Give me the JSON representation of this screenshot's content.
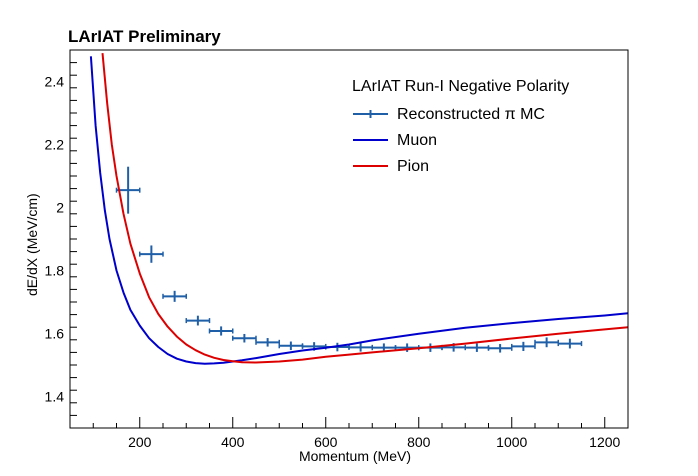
{
  "chart_data": {
    "type": "line",
    "title": "LArIAT Preliminary",
    "xlabel": "Momentum (MeV)",
    "ylabel": "dE/dX (MeV/cm)",
    "xlim": [
      50,
      1250
    ],
    "ylim": [
      1.3,
      2.5
    ],
    "x_ticks": [
      200,
      400,
      600,
      800,
      1000,
      1200
    ],
    "x_tick_labels": [
      "200",
      "400",
      "600",
      "800",
      "1000",
      "1200"
    ],
    "y_ticks": [
      1.4,
      1.6,
      1.8,
      2.0,
      2.2,
      2.4
    ],
    "y_tick_labels": [
      "1.4",
      "1.6",
      "1.8",
      "2",
      "2.2",
      "2.4"
    ],
    "legend": {
      "title": "LArIAT Run-I Negative Polarity",
      "position": "top-right",
      "entries": [
        "Reconstructed π MC",
        "Muon",
        "Pion"
      ]
    },
    "series": [
      {
        "name": "Reconstructed π MC",
        "kind": "errorbar",
        "color": "#1f5fa8",
        "points": [
          {
            "x": 175,
            "y": 2.055,
            "xerr": 25,
            "yerr": 0.065
          },
          {
            "x": 225,
            "y": 1.852,
            "xerr": 25,
            "yerr": 0.018
          },
          {
            "x": 275,
            "y": 1.718,
            "xerr": 25,
            "yerr": 0.008
          },
          {
            "x": 325,
            "y": 1.641,
            "xerr": 25,
            "yerr": 0.006
          },
          {
            "x": 375,
            "y": 1.608,
            "xerr": 25,
            "yerr": 0.005
          },
          {
            "x": 425,
            "y": 1.585,
            "xerr": 25,
            "yerr": 0.004
          },
          {
            "x": 475,
            "y": 1.572,
            "xerr": 25,
            "yerr": 0.004
          },
          {
            "x": 525,
            "y": 1.561,
            "xerr": 25,
            "yerr": 0.004
          },
          {
            "x": 575,
            "y": 1.559,
            "xerr": 25,
            "yerr": 0.004
          },
          {
            "x": 625,
            "y": 1.557,
            "xerr": 25,
            "yerr": 0.004
          },
          {
            "x": 675,
            "y": 1.556,
            "xerr": 25,
            "yerr": 0.004
          },
          {
            "x": 725,
            "y": 1.555,
            "xerr": 25,
            "yerr": 0.004
          },
          {
            "x": 775,
            "y": 1.555,
            "xerr": 25,
            "yerr": 0.004
          },
          {
            "x": 825,
            "y": 1.555,
            "xerr": 25,
            "yerr": 0.004
          },
          {
            "x": 875,
            "y": 1.556,
            "xerr": 25,
            "yerr": 0.004
          },
          {
            "x": 925,
            "y": 1.555,
            "xerr": 25,
            "yerr": 0.004
          },
          {
            "x": 975,
            "y": 1.553,
            "xerr": 25,
            "yerr": 0.004
          },
          {
            "x": 1025,
            "y": 1.559,
            "xerr": 25,
            "yerr": 0.005
          },
          {
            "x": 1075,
            "y": 1.572,
            "xerr": 25,
            "yerr": 0.006
          },
          {
            "x": 1125,
            "y": 1.568,
            "xerr": 25,
            "yerr": 0.006
          }
        ]
      },
      {
        "name": "Muon",
        "kind": "line",
        "color": "#0000cc",
        "x": [
          95,
          105,
          115,
          125,
          135,
          150,
          165,
          180,
          200,
          220,
          240,
          260,
          280,
          300,
          320,
          340,
          360,
          380,
          400,
          420,
          450,
          500,
          550,
          600,
          650,
          700,
          800,
          900,
          1000,
          1100,
          1200,
          1250
        ],
        "y": [
          2.48,
          2.26,
          2.11,
          1.99,
          1.9,
          1.8,
          1.73,
          1.675,
          1.625,
          1.585,
          1.557,
          1.535,
          1.52,
          1.511,
          1.506,
          1.504,
          1.505,
          1.507,
          1.511,
          1.515,
          1.522,
          1.535,
          1.546,
          1.555,
          1.565,
          1.578,
          1.599,
          1.618,
          1.633,
          1.646,
          1.657,
          1.664
        ]
      },
      {
        "name": "Pion",
        "kind": "line",
        "color": "#dd0000",
        "x": [
          120,
          130,
          140,
          150,
          165,
          180,
          200,
          220,
          240,
          260,
          280,
          300,
          320,
          340,
          360,
          380,
          400,
          420,
          450,
          500,
          550,
          600,
          650,
          700,
          800,
          900,
          1000,
          1100,
          1200,
          1250
        ],
        "y": [
          2.49,
          2.33,
          2.2,
          2.1,
          1.98,
          1.885,
          1.79,
          1.715,
          1.662,
          1.622,
          1.59,
          1.565,
          1.547,
          1.533,
          1.523,
          1.516,
          1.512,
          1.509,
          1.508,
          1.511,
          1.517,
          1.526,
          1.533,
          1.54,
          1.553,
          1.568,
          1.584,
          1.599,
          1.613,
          1.62
        ]
      }
    ]
  }
}
